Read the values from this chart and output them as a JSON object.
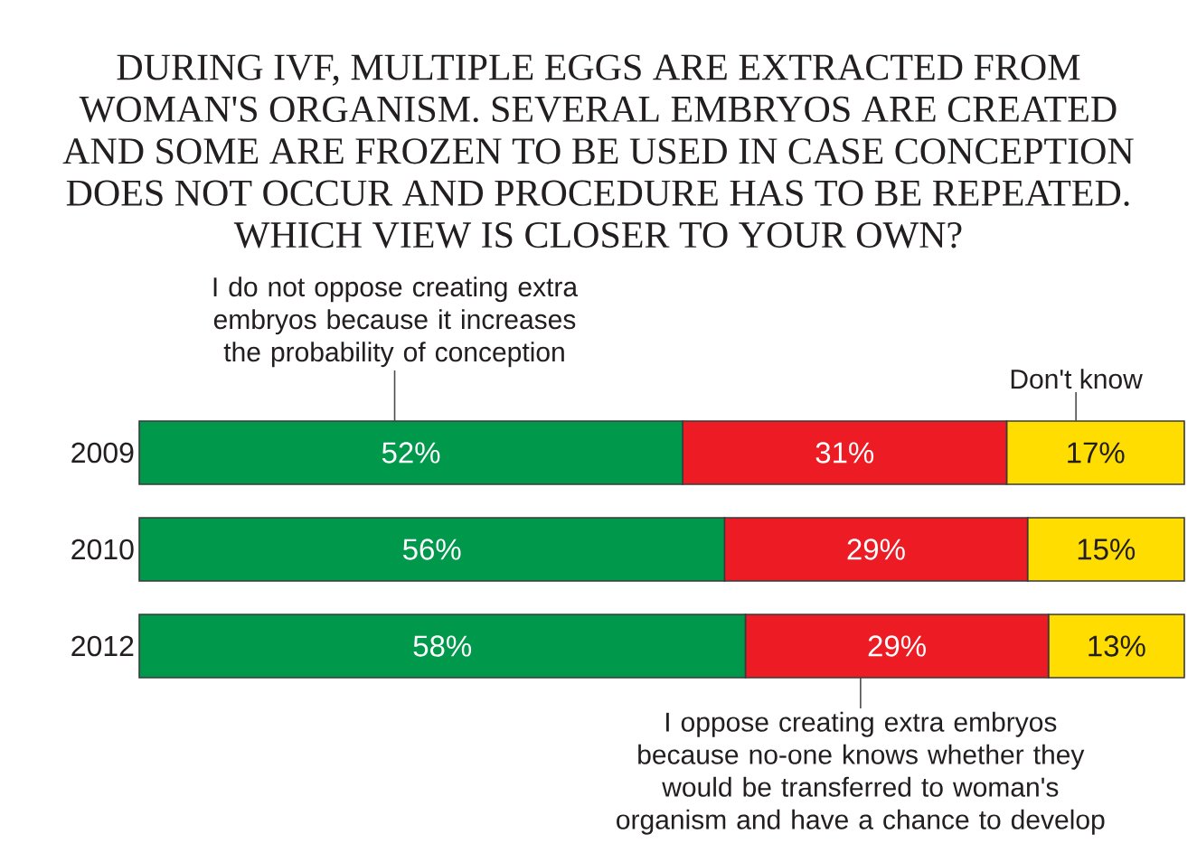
{
  "chart_data": {
    "type": "bar",
    "orientation": "horizontal",
    "stacked": true,
    "title": "DURING IVF, MULTIPLE EGGS ARE EXTRACTED FROM WOMAN'S ORGANISM. SEVERAL EMBRYOS ARE CREATED AND SOME ARE FROZEN TO BE USED IN CASE CONCEPTION DOES NOT OCCUR AND PROCEDURE HAS TO BE REPEATED. WHICH VIEW IS CLOSER TO YOUR OWN?",
    "categories": [
      "2009",
      "2010",
      "2012"
    ],
    "series": [
      {
        "name": "I do not oppose creating extra embryos because it increases the probability of conception",
        "color": "#00994c",
        "values": [
          52,
          56,
          58
        ],
        "value_labels": [
          "52%",
          "56%",
          "58%"
        ]
      },
      {
        "name": "I oppose creating extra embryos because no-one knows whether they would be transferred to woman's organism and have a chance to develop",
        "color": "#ed1c24",
        "values": [
          31,
          29,
          29
        ],
        "value_labels": [
          "31%",
          "29%",
          "29%"
        ]
      },
      {
        "name": "Don't know",
        "color": "#ffdd00",
        "values": [
          17,
          15,
          13
        ],
        "value_labels": [
          "17%",
          "15%",
          "13%"
        ]
      }
    ],
    "tick_labels": "y"
  }
}
